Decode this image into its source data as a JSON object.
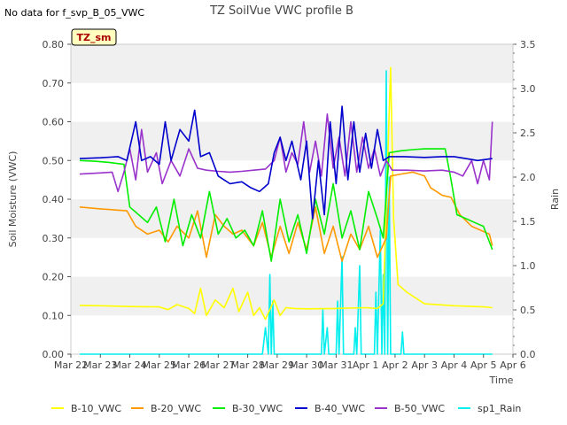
{
  "page": {
    "title": "TZ SoilVue VWC profile B",
    "no_data_note": "No data for f_svp_B_05_VWC",
    "site_badge": "TZ_sm"
  },
  "chart_data": {
    "type": "line",
    "title": "TZ SoilVue VWC profile B",
    "xlabel": "Time",
    "ylabel": "Soil Moisture (VWC)",
    "y2label": "Rain",
    "x_ticks": [
      "Mar 22",
      "Mar 23",
      "Mar 24",
      "Mar 25",
      "Mar 26",
      "Mar 27",
      "Mar 28",
      "Mar 29",
      "Mar 30",
      "Mar 31",
      "Apr 1",
      "Apr 2",
      "Apr 3",
      "Apr 4",
      "Apr 5",
      "Apr 6"
    ],
    "xlim_days": [
      0,
      15
    ],
    "ylim": [
      0.0,
      0.8
    ],
    "y_ticks": [
      "0.00",
      "0.10",
      "0.20",
      "0.30",
      "0.40",
      "0.50",
      "0.60",
      "0.70",
      "0.80"
    ],
    "y2lim": [
      0.0,
      3.5
    ],
    "y2_ticks": [
      "0.0",
      "0.5",
      "1.0",
      "1.5",
      "2.0",
      "2.5",
      "3.0",
      "3.5"
    ],
    "grid": "horizontal bands",
    "legend_position": "bottom",
    "series": [
      {
        "name": "B-10_VWC",
        "color": "#ffff00",
        "axis": "left",
        "points": [
          [
            0.3,
            0.126
          ],
          [
            1.0,
            0.125
          ],
          [
            2.0,
            0.123
          ],
          [
            3.0,
            0.122
          ],
          [
            3.3,
            0.115
          ],
          [
            3.6,
            0.128
          ],
          [
            4.0,
            0.118
          ],
          [
            4.2,
            0.105
          ],
          [
            4.4,
            0.17
          ],
          [
            4.6,
            0.1
          ],
          [
            4.9,
            0.14
          ],
          [
            5.2,
            0.12
          ],
          [
            5.5,
            0.17
          ],
          [
            5.7,
            0.11
          ],
          [
            6.0,
            0.16
          ],
          [
            6.2,
            0.1
          ],
          [
            6.4,
            0.12
          ],
          [
            6.6,
            0.09
          ],
          [
            6.9,
            0.14
          ],
          [
            7.1,
            0.1
          ],
          [
            7.3,
            0.12
          ],
          [
            7.6,
            0.118
          ],
          [
            8.0,
            0.117
          ],
          [
            9.0,
            0.118
          ],
          [
            10.0,
            0.12
          ],
          [
            10.4,
            0.118
          ],
          [
            10.6,
            0.13
          ],
          [
            10.75,
            0.5
          ],
          [
            10.85,
            0.74
          ],
          [
            10.95,
            0.35
          ],
          [
            11.1,
            0.18
          ],
          [
            11.4,
            0.16
          ],
          [
            12.0,
            0.13
          ],
          [
            13.0,
            0.125
          ],
          [
            14.0,
            0.122
          ],
          [
            14.3,
            0.12
          ]
        ]
      },
      {
        "name": "B-20_VWC",
        "color": "#ff9900",
        "axis": "left",
        "points": [
          [
            0.3,
            0.38
          ],
          [
            1.0,
            0.375
          ],
          [
            1.9,
            0.37
          ],
          [
            2.2,
            0.33
          ],
          [
            2.6,
            0.31
          ],
          [
            3.0,
            0.32
          ],
          [
            3.3,
            0.29
          ],
          [
            3.6,
            0.33
          ],
          [
            4.0,
            0.3
          ],
          [
            4.3,
            0.37
          ],
          [
            4.6,
            0.25
          ],
          [
            4.9,
            0.36
          ],
          [
            5.2,
            0.33
          ],
          [
            5.5,
            0.31
          ],
          [
            5.8,
            0.32
          ],
          [
            6.2,
            0.28
          ],
          [
            6.5,
            0.34
          ],
          [
            6.8,
            0.25
          ],
          [
            7.1,
            0.33
          ],
          [
            7.4,
            0.26
          ],
          [
            7.7,
            0.34
          ],
          [
            8.0,
            0.27
          ],
          [
            8.3,
            0.38
          ],
          [
            8.6,
            0.26
          ],
          [
            8.9,
            0.33
          ],
          [
            9.2,
            0.24
          ],
          [
            9.5,
            0.31
          ],
          [
            9.8,
            0.27
          ],
          [
            10.1,
            0.33
          ],
          [
            10.4,
            0.25
          ],
          [
            10.7,
            0.3
          ],
          [
            10.85,
            0.46
          ],
          [
            11.2,
            0.465
          ],
          [
            11.6,
            0.47
          ],
          [
            12.0,
            0.46
          ],
          [
            12.2,
            0.43
          ],
          [
            12.6,
            0.41
          ],
          [
            12.9,
            0.405
          ],
          [
            13.2,
            0.36
          ],
          [
            13.6,
            0.33
          ],
          [
            13.9,
            0.32
          ],
          [
            14.2,
            0.31
          ],
          [
            14.3,
            0.28
          ]
        ]
      },
      {
        "name": "B-30_VWC",
        "color": "#00ee00",
        "axis": "left",
        "points": [
          [
            0.3,
            0.5
          ],
          [
            0.8,
            0.498
          ],
          [
            1.3,
            0.495
          ],
          [
            1.8,
            0.49
          ],
          [
            2.0,
            0.38
          ],
          [
            2.3,
            0.36
          ],
          [
            2.6,
            0.34
          ],
          [
            2.9,
            0.38
          ],
          [
            3.2,
            0.29
          ],
          [
            3.5,
            0.4
          ],
          [
            3.8,
            0.28
          ],
          [
            4.1,
            0.36
          ],
          [
            4.4,
            0.3
          ],
          [
            4.7,
            0.42
          ],
          [
            5.0,
            0.31
          ],
          [
            5.3,
            0.35
          ],
          [
            5.6,
            0.3
          ],
          [
            5.9,
            0.32
          ],
          [
            6.2,
            0.28
          ],
          [
            6.5,
            0.37
          ],
          [
            6.8,
            0.24
          ],
          [
            7.1,
            0.4
          ],
          [
            7.4,
            0.29
          ],
          [
            7.7,
            0.36
          ],
          [
            8.0,
            0.26
          ],
          [
            8.3,
            0.4
          ],
          [
            8.6,
            0.31
          ],
          [
            8.9,
            0.44
          ],
          [
            9.2,
            0.3
          ],
          [
            9.5,
            0.37
          ],
          [
            9.8,
            0.27
          ],
          [
            10.1,
            0.42
          ],
          [
            10.4,
            0.35
          ],
          [
            10.6,
            0.3
          ],
          [
            10.8,
            0.52
          ],
          [
            11.2,
            0.525
          ],
          [
            11.6,
            0.528
          ],
          [
            12.0,
            0.53
          ],
          [
            12.4,
            0.53
          ],
          [
            12.7,
            0.53
          ],
          [
            12.9,
            0.45
          ],
          [
            13.1,
            0.36
          ],
          [
            13.4,
            0.35
          ],
          [
            13.7,
            0.34
          ],
          [
            14.0,
            0.33
          ],
          [
            14.3,
            0.27
          ]
        ]
      },
      {
        "name": "B-40_VWC",
        "color": "#0000cc",
        "axis": "left",
        "points": [
          [
            0.3,
            0.505
          ],
          [
            1.0,
            0.507
          ],
          [
            1.6,
            0.51
          ],
          [
            1.9,
            0.5
          ],
          [
            2.2,
            0.6
          ],
          [
            2.4,
            0.5
          ],
          [
            2.7,
            0.51
          ],
          [
            3.0,
            0.49
          ],
          [
            3.2,
            0.6
          ],
          [
            3.4,
            0.5
          ],
          [
            3.7,
            0.58
          ],
          [
            4.0,
            0.55
          ],
          [
            4.2,
            0.63
          ],
          [
            4.4,
            0.51
          ],
          [
            4.7,
            0.52
          ],
          [
            5.0,
            0.46
          ],
          [
            5.4,
            0.44
          ],
          [
            5.8,
            0.445
          ],
          [
            6.1,
            0.43
          ],
          [
            6.4,
            0.42
          ],
          [
            6.7,
            0.44
          ],
          [
            6.9,
            0.52
          ],
          [
            7.1,
            0.56
          ],
          [
            7.3,
            0.5
          ],
          [
            7.5,
            0.55
          ],
          [
            7.8,
            0.45
          ],
          [
            8.0,
            0.55
          ],
          [
            8.2,
            0.35
          ],
          [
            8.4,
            0.5
          ],
          [
            8.6,
            0.36
          ],
          [
            8.8,
            0.6
          ],
          [
            9.0,
            0.44
          ],
          [
            9.2,
            0.64
          ],
          [
            9.4,
            0.45
          ],
          [
            9.6,
            0.6
          ],
          [
            9.8,
            0.47
          ],
          [
            10.0,
            0.57
          ],
          [
            10.2,
            0.48
          ],
          [
            10.4,
            0.58
          ],
          [
            10.6,
            0.5
          ],
          [
            10.8,
            0.51
          ],
          [
            11.3,
            0.51
          ],
          [
            12.0,
            0.508
          ],
          [
            12.6,
            0.51
          ],
          [
            13.0,
            0.51
          ],
          [
            13.4,
            0.505
          ],
          [
            13.8,
            0.5
          ],
          [
            14.3,
            0.505
          ]
        ]
      },
      {
        "name": "B-50_VWC",
        "color": "#9933cc",
        "axis": "left",
        "points": [
          [
            0.3,
            0.465
          ],
          [
            1.0,
            0.468
          ],
          [
            1.4,
            0.47
          ],
          [
            1.6,
            0.42
          ],
          [
            1.8,
            0.47
          ],
          [
            2.0,
            0.53
          ],
          [
            2.2,
            0.45
          ],
          [
            2.4,
            0.58
          ],
          [
            2.6,
            0.47
          ],
          [
            2.9,
            0.52
          ],
          [
            3.1,
            0.44
          ],
          [
            3.4,
            0.5
          ],
          [
            3.7,
            0.46
          ],
          [
            4.0,
            0.53
          ],
          [
            4.3,
            0.48
          ],
          [
            4.6,
            0.475
          ],
          [
            5.0,
            0.472
          ],
          [
            5.4,
            0.47
          ],
          [
            5.8,
            0.472
          ],
          [
            6.2,
            0.475
          ],
          [
            6.6,
            0.478
          ],
          [
            6.9,
            0.5
          ],
          [
            7.1,
            0.56
          ],
          [
            7.3,
            0.47
          ],
          [
            7.5,
            0.52
          ],
          [
            7.7,
            0.49
          ],
          [
            7.9,
            0.6
          ],
          [
            8.1,
            0.47
          ],
          [
            8.3,
            0.55
          ],
          [
            8.5,
            0.46
          ],
          [
            8.7,
            0.62
          ],
          [
            8.9,
            0.48
          ],
          [
            9.1,
            0.56
          ],
          [
            9.3,
            0.46
          ],
          [
            9.5,
            0.6
          ],
          [
            9.7,
            0.47
          ],
          [
            9.9,
            0.56
          ],
          [
            10.1,
            0.48
          ],
          [
            10.3,
            0.53
          ],
          [
            10.5,
            0.46
          ],
          [
            10.7,
            0.5
          ],
          [
            10.9,
            0.475
          ],
          [
            11.4,
            0.475
          ],
          [
            12.0,
            0.473
          ],
          [
            12.6,
            0.475
          ],
          [
            13.0,
            0.47
          ],
          [
            13.3,
            0.46
          ],
          [
            13.6,
            0.5
          ],
          [
            13.8,
            0.44
          ],
          [
            14.0,
            0.5
          ],
          [
            14.2,
            0.45
          ],
          [
            14.3,
            0.6
          ]
        ]
      },
      {
        "name": "sp1_Rain",
        "color": "#00eeee",
        "axis": "right",
        "points": [
          [
            0.3,
            0.0
          ],
          [
            6.5,
            0.0
          ],
          [
            6.6,
            0.3
          ],
          [
            6.7,
            0.0
          ],
          [
            6.75,
            0.9
          ],
          [
            6.8,
            0.0
          ],
          [
            6.85,
            0.6
          ],
          [
            6.9,
            0.0
          ],
          [
            8.5,
            0.0
          ],
          [
            8.55,
            0.5
          ],
          [
            8.6,
            0.0
          ],
          [
            8.7,
            0.3
          ],
          [
            8.75,
            0.0
          ],
          [
            9.0,
            0.0
          ],
          [
            9.05,
            0.6
          ],
          [
            9.1,
            0.0
          ],
          [
            9.2,
            1.1
          ],
          [
            9.25,
            0.0
          ],
          [
            9.6,
            0.0
          ],
          [
            9.65,
            0.3
          ],
          [
            9.7,
            0.0
          ],
          [
            9.8,
            1.0
          ],
          [
            9.85,
            0.0
          ],
          [
            10.3,
            0.0
          ],
          [
            10.35,
            0.7
          ],
          [
            10.4,
            0.0
          ],
          [
            10.5,
            1.4
          ],
          [
            10.55,
            0.0
          ],
          [
            10.6,
            0.9
          ],
          [
            10.65,
            0.0
          ],
          [
            10.7,
            3.2
          ],
          [
            10.75,
            0.0
          ],
          [
            10.8,
            2.0
          ],
          [
            10.85,
            0.0
          ],
          [
            11.2,
            0.0
          ],
          [
            11.25,
            0.25
          ],
          [
            11.3,
            0.0
          ],
          [
            14.3,
            0.0
          ]
        ]
      }
    ]
  }
}
